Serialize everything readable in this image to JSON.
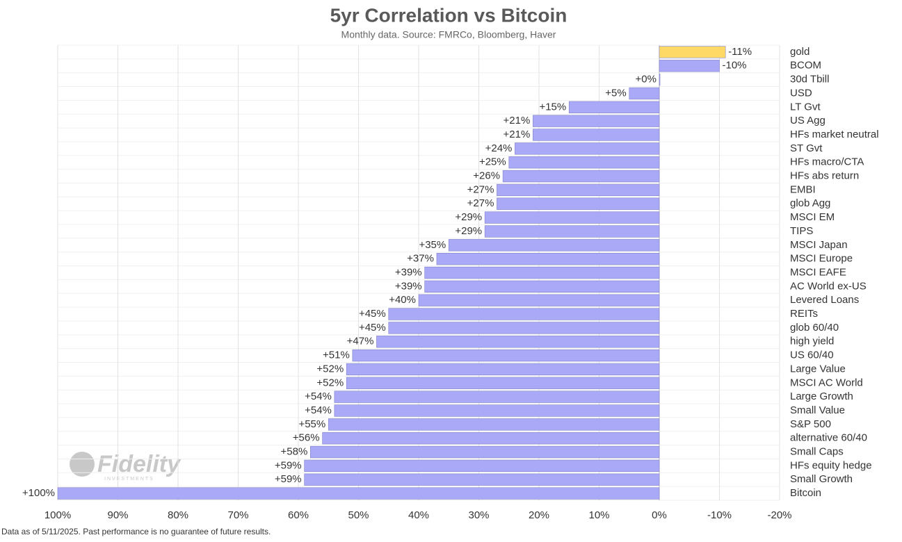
{
  "chart_data": {
    "type": "hbar",
    "title": "5yr Correlation vs Bitcoin",
    "subtitle": "Monthly data. Source: FMRCo, Bloomberg, Haver",
    "footnote": "Data as of 5/11/2025. Past performance is no guarantee of future results.",
    "logo": "Fidelity",
    "logo_sub": "INVESTMENTS",
    "categories": [
      "gold",
      "BCOM",
      "30d Tbill",
      "USD",
      "LT Gvt",
      "US Agg",
      "HFs market neutral",
      "ST Gvt",
      "HFs macro/CTA",
      "HFs abs return",
      "EMBI",
      "glob Agg",
      "MSCI EM",
      "TIPS",
      "MSCI Japan",
      "MSCI Europe",
      "MSCI EAFE",
      "AC World ex-US",
      "Levered Loans",
      "REITs",
      "glob 60/40",
      "high yield",
      "US 60/40",
      "Large Value",
      "MSCI AC World",
      "Large Growth",
      "Small Value",
      "S&P 500",
      "alternative 60/40",
      "Small Caps",
      "HFs equity hedge",
      "Small Growth",
      "Bitcoin"
    ],
    "values": [
      -11,
      -10,
      0,
      5,
      15,
      21,
      21,
      24,
      25,
      26,
      27,
      27,
      29,
      29,
      35,
      37,
      39,
      39,
      40,
      45,
      45,
      47,
      51,
      52,
      52,
      54,
      54,
      55,
      56,
      58,
      59,
      59,
      100
    ],
    "value_labels": [
      "-11%",
      "-10%",
      "+0%",
      "+5%",
      "+15%",
      "+21%",
      "+21%",
      "+24%",
      "+25%",
      "+26%",
      "+27%",
      "+27%",
      "+29%",
      "+29%",
      "+35%",
      "+37%",
      "+39%",
      "+39%",
      "+40%",
      "+45%",
      "+45%",
      "+47%",
      "+51%",
      "+52%",
      "+52%",
      "+54%",
      "+54%",
      "+55%",
      "+56%",
      "+58%",
      "+59%",
      "+59%",
      "+100%"
    ],
    "colors": [
      "#ffd966",
      "#a9a9f7",
      "#a9a9f7",
      "#a9a9f7",
      "#a9a9f7",
      "#a9a9f7",
      "#a9a9f7",
      "#a9a9f7",
      "#a9a9f7",
      "#a9a9f7",
      "#a9a9f7",
      "#a9a9f7",
      "#a9a9f7",
      "#a9a9f7",
      "#a9a9f7",
      "#a9a9f7",
      "#a9a9f7",
      "#a9a9f7",
      "#a9a9f7",
      "#a9a9f7",
      "#a9a9f7",
      "#a9a9f7",
      "#a9a9f7",
      "#a9a9f7",
      "#a9a9f7",
      "#a9a9f7",
      "#a9a9f7",
      "#a9a9f7",
      "#a9a9f7",
      "#a9a9f7",
      "#a9a9f7",
      "#a9a9f7",
      "#a9a9f7"
    ],
    "xlim": [
      100,
      -20
    ],
    "xticks": [
      {
        "value": 100,
        "label": "100%"
      },
      {
        "value": 90,
        "label": "90%"
      },
      {
        "value": 80,
        "label": "80%"
      },
      {
        "value": 70,
        "label": "70%"
      },
      {
        "value": 60,
        "label": "60%"
      },
      {
        "value": 50,
        "label": "50%"
      },
      {
        "value": 40,
        "label": "40%"
      },
      {
        "value": 30,
        "label": "30%"
      },
      {
        "value": 20,
        "label": "20%"
      },
      {
        "value": 10,
        "label": "10%"
      },
      {
        "value": 0,
        "label": "0%"
      },
      {
        "value": -10,
        "label": "-10%"
      },
      {
        "value": -20,
        "label": "-20%"
      }
    ],
    "grid": true
  }
}
